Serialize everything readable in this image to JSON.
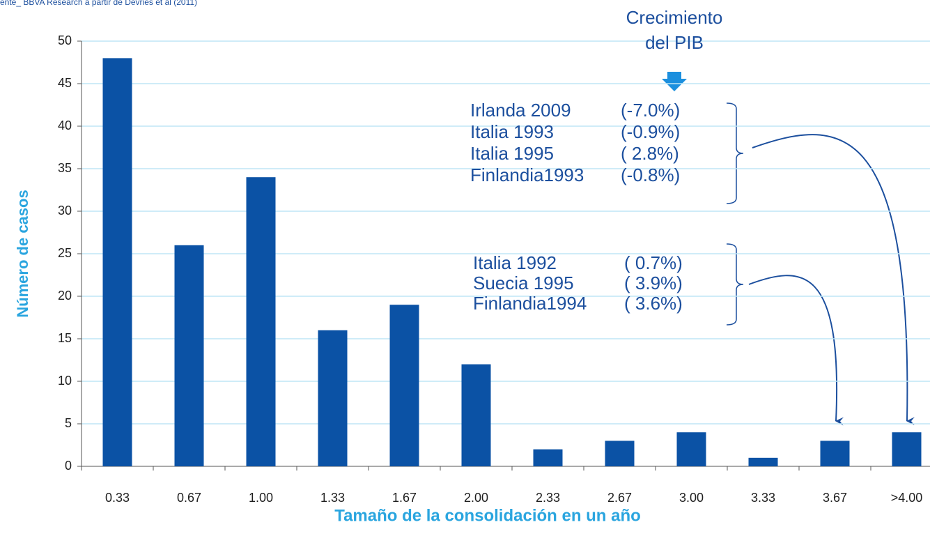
{
  "chart_data": {
    "type": "bar",
    "source": "ente_ BBVA Research a partir de Devries et al (2011)",
    "y_label": "Número de casos",
    "x_label": "Tamaño de la consolidación en un año",
    "categories": [
      "0.33",
      "0.67",
      "1.00",
      "1.33",
      "1.67",
      "2.00",
      "2.33",
      "2.67",
      "3.00",
      "3.33",
      "3.67",
      ">4.00"
    ],
    "values": [
      48,
      26,
      34,
      16,
      19,
      12,
      2,
      3,
      4,
      1,
      3,
      4
    ],
    "color": "#0b52a5",
    "ylim": [
      0,
      50
    ],
    "yticks": [
      0,
      5,
      10,
      15,
      20,
      25,
      30,
      35,
      40,
      45,
      50
    ],
    "grid": true,
    "annotation_title": [
      "Crecimiento",
      "del PIB"
    ],
    "annotation_groups": [
      [
        {
          "name": "Irlanda 2009",
          "growth": "(-7.0%)"
        },
        {
          "name": "Italia 1993",
          "growth": "(-0.9%)"
        },
        {
          "name": "Italia 1995",
          "growth": "(  2.8%)"
        },
        {
          "name": "Finlandia1993",
          "growth": "(-0.8%)"
        }
      ],
      [
        {
          "name": "Italia 1992",
          "growth": "( 0.7%)"
        },
        {
          "name": "Suecia 1995",
          "growth": "( 3.9%)"
        },
        {
          "name": "Finlandia1994",
          "growth": "( 3.6%)"
        }
      ]
    ]
  }
}
